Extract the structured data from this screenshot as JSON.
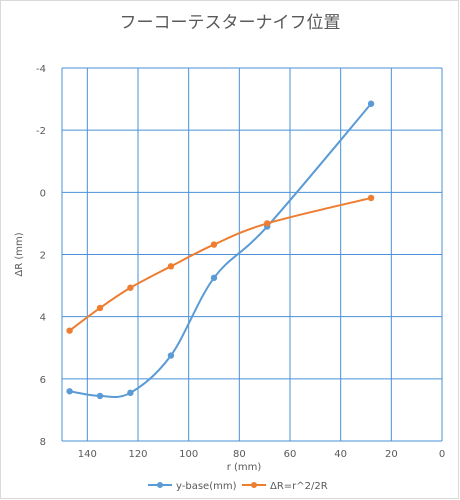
{
  "chart_data": {
    "type": "line",
    "title": "フーコーテスターナイフ位置",
    "xlabel": "r (mm)",
    "ylabel": "ΔR (mm)",
    "xlim": [
      150,
      0
    ],
    "ylim": [
      8,
      -4
    ],
    "x_ticks": [
      140,
      120,
      100,
      80,
      60,
      40,
      20,
      0
    ],
    "y_ticks": [
      -4,
      -2,
      0,
      2,
      4,
      6,
      8
    ],
    "x_reversed": true,
    "y_reversed": true,
    "grid": true,
    "legend_position": "bottom",
    "series": [
      {
        "name": "y-base(mm)",
        "color": "#5b9bd5",
        "x": [
          147,
          135,
          123,
          107,
          90,
          69,
          28
        ],
        "y": [
          6.4,
          6.55,
          6.45,
          5.25,
          2.75,
          1.1,
          -2.85
        ]
      },
      {
        "name": "ΔR=r^2/2R",
        "color": "#ed7d31",
        "x": [
          147,
          135,
          123,
          107,
          90,
          69,
          28
        ],
        "y": [
          4.45,
          3.72,
          3.07,
          2.38,
          1.68,
          1.0,
          0.18
        ]
      }
    ]
  }
}
